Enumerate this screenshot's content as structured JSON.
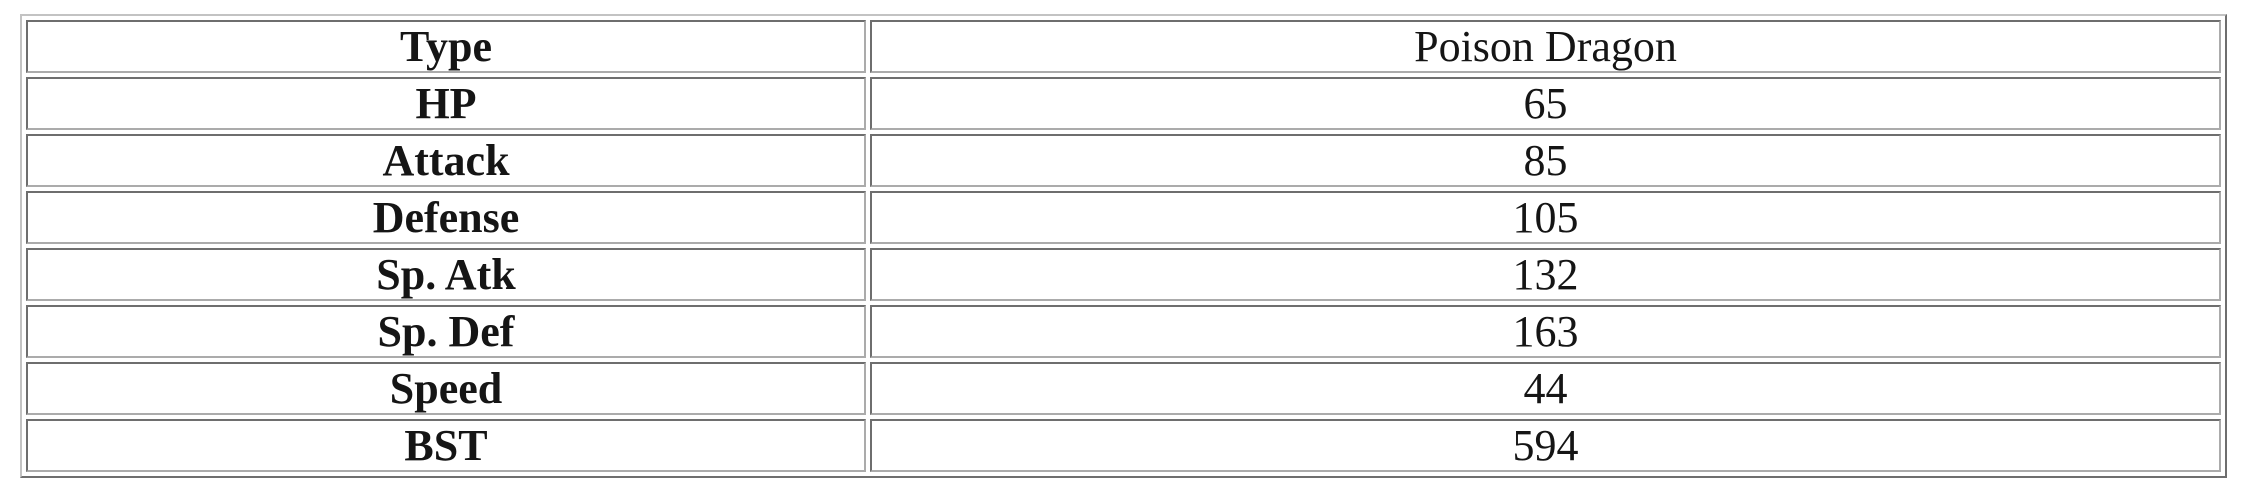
{
  "colors": {
    "background": "#ffffff",
    "text": "#151515",
    "cell_border_dark": "#6e6e6e",
    "cell_border_light": "#ababab",
    "outer_border_light": "#c3c3c3",
    "outer_border_dark": "#6e6e6e"
  },
  "stats_table": {
    "rows": [
      {
        "label": "Type",
        "value": "Poison Dragon"
      },
      {
        "label": "HP",
        "value": "65"
      },
      {
        "label": "Attack",
        "value": "85"
      },
      {
        "label": "Defense",
        "value": "105"
      },
      {
        "label": "Sp. Atk",
        "value": "132"
      },
      {
        "label": "Sp. Def",
        "value": "163"
      },
      {
        "label": "Speed",
        "value": "44"
      },
      {
        "label": "BST",
        "value": "594"
      }
    ]
  }
}
